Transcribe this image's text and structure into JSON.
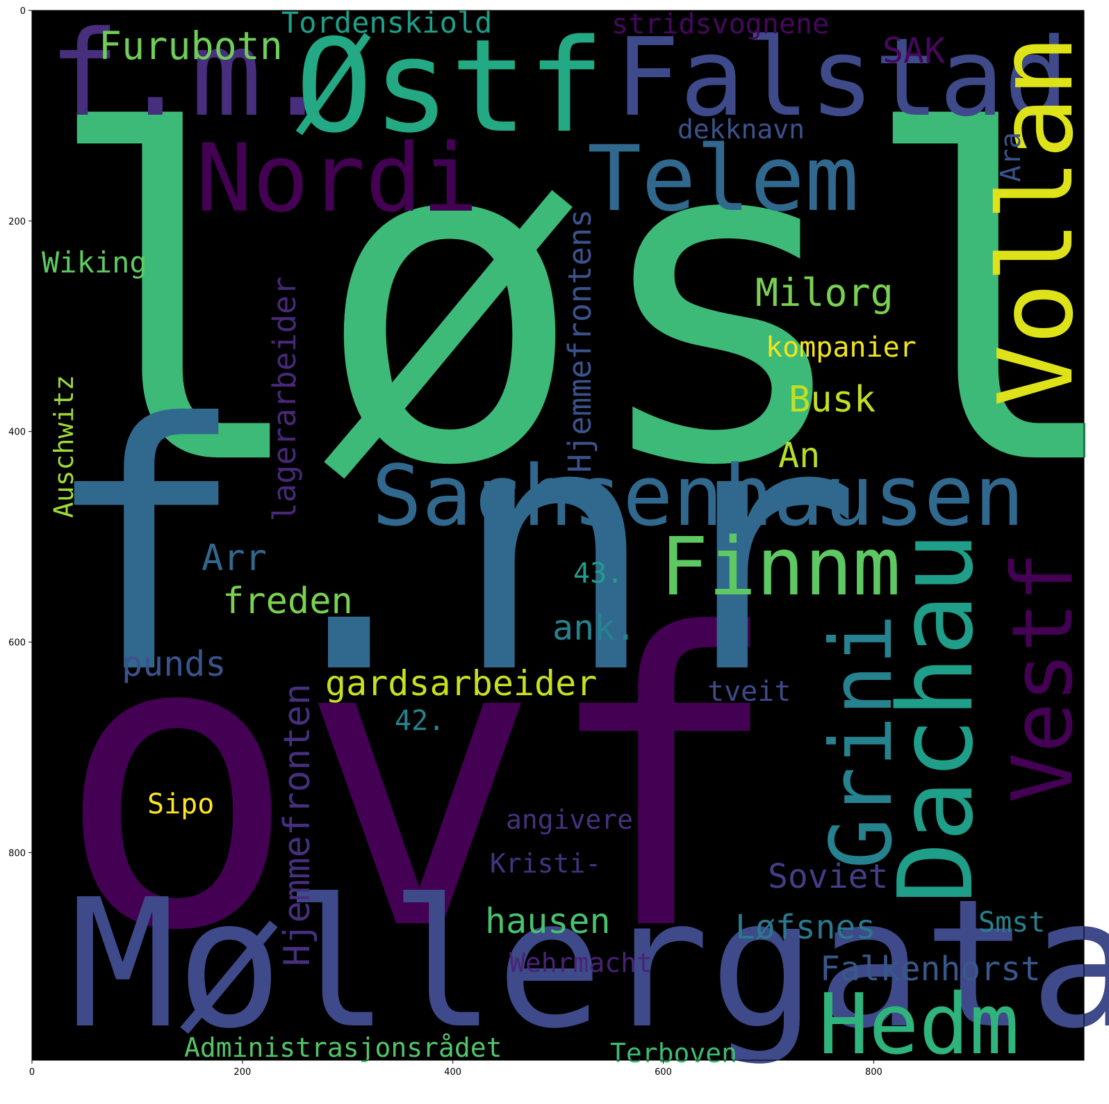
{
  "figure": {
    "background": "#000000",
    "frame_color": "#000000",
    "x_ticks": [
      {
        "value": 0,
        "label": "0"
      },
      {
        "value": 200,
        "label": "200"
      },
      {
        "value": 400,
        "label": "400"
      },
      {
        "value": 600,
        "label": "600"
      },
      {
        "value": 800,
        "label": "800"
      }
    ],
    "y_ticks": [
      {
        "value": 0,
        "label": "0"
      },
      {
        "value": 200,
        "label": "200"
      },
      {
        "value": 400,
        "label": "400"
      },
      {
        "value": 600,
        "label": "600"
      },
      {
        "value": 800,
        "label": "800"
      }
    ]
  },
  "palette": {
    "dark_purple": "#440154",
    "indigo": "#3e4a89",
    "slate_blue": "#31688e",
    "teal": "#26828e",
    "sea_green": "#1f9e89",
    "green": "#35b779",
    "light_green": "#6ece58",
    "lime": "#b5de2b",
    "yellow": "#fde725",
    "gold": "#f5d41f",
    "dim_purple": "#482878"
  },
  "words": [
    {
      "text": "løsl",
      "color": "#3dba78"
    },
    {
      "text": "ovf",
      "color": "#440154"
    },
    {
      "text": "f.nr",
      "color": "#31688e"
    },
    {
      "text": "Møllergata",
      "color": "#3e4a89"
    },
    {
      "text": "f.m.",
      "color": "#472f7d"
    },
    {
      "text": "Østf",
      "color": "#23a983"
    },
    {
      "text": "Falstad",
      "color": "#3e4a89"
    },
    {
      "text": "Vollan",
      "color": "#dde318"
    },
    {
      "text": "Nordi",
      "color": "#440154"
    },
    {
      "text": "Telem",
      "color": "#31688e"
    },
    {
      "text": "Sachsenhausen",
      "color": "#31688e"
    },
    {
      "text": "Dachau",
      "color": "#1f9e89"
    },
    {
      "text": "Vestf",
      "color": "#440154"
    },
    {
      "text": "Grini",
      "color": "#26828e"
    },
    {
      "text": "Finnm",
      "color": "#5ec962"
    },
    {
      "text": "Hedm",
      "color": "#2fb47c"
    },
    {
      "text": "Furubotn",
      "color": "#6ece58"
    },
    {
      "text": "Tordenskiold",
      "color": "#1f9e89"
    },
    {
      "text": "stridsvognene",
      "color": "#46085c"
    },
    {
      "text": "SAK",
      "color": "#46085c"
    },
    {
      "text": "dekknavn",
      "color": "#3b528b"
    },
    {
      "text": "Ara",
      "color": "#3b528b"
    },
    {
      "text": "Hjemmefrontens",
      "color": "#3b528b"
    },
    {
      "text": "Milorg",
      "color": "#7ad151"
    },
    {
      "text": "kompanier",
      "color": "#f1e51d"
    },
    {
      "text": "Busk",
      "color": "#c2df23"
    },
    {
      "text": "An",
      "color": "#b5de2b"
    },
    {
      "text": "Wiking",
      "color": "#5ec962"
    },
    {
      "text": "lagerarbeider",
      "color": "#482878"
    },
    {
      "text": "Auschwitz",
      "color": "#a0da39"
    },
    {
      "text": "Arr",
      "color": "#31688e"
    },
    {
      "text": "43.",
      "color": "#1f9e89"
    },
    {
      "text": "freden",
      "color": "#7ad151"
    },
    {
      "text": "ank.",
      "color": "#26828e"
    },
    {
      "text": "punds",
      "color": "#3b528b"
    },
    {
      "text": "gardsarbeider",
      "color": "#c8e020"
    },
    {
      "text": "tveit",
      "color": "#3e4a89"
    },
    {
      "text": "42.",
      "color": "#26828e"
    },
    {
      "text": "Hjemmefronten",
      "color": "#472f7d"
    },
    {
      "text": "Sipo",
      "color": "#fde725"
    },
    {
      "text": "angivere",
      "color": "#46327e"
    },
    {
      "text": "Kristi-",
      "color": "#46327e"
    },
    {
      "text": "Soviet",
      "color": "#433e85"
    },
    {
      "text": "hausen",
      "color": "#4ac16d"
    },
    {
      "text": "Løfsnes",
      "color": "#2a788e"
    },
    {
      "text": "Smst",
      "color": "#26828e"
    },
    {
      "text": "Wehrmacht",
      "color": "#482475"
    },
    {
      "text": "Falkenhorst",
      "color": "#38588c"
    },
    {
      "text": "Administrasjonsrådet",
      "color": "#52c569"
    },
    {
      "text": "Terboven",
      "color": "#3dbc74"
    }
  ]
}
